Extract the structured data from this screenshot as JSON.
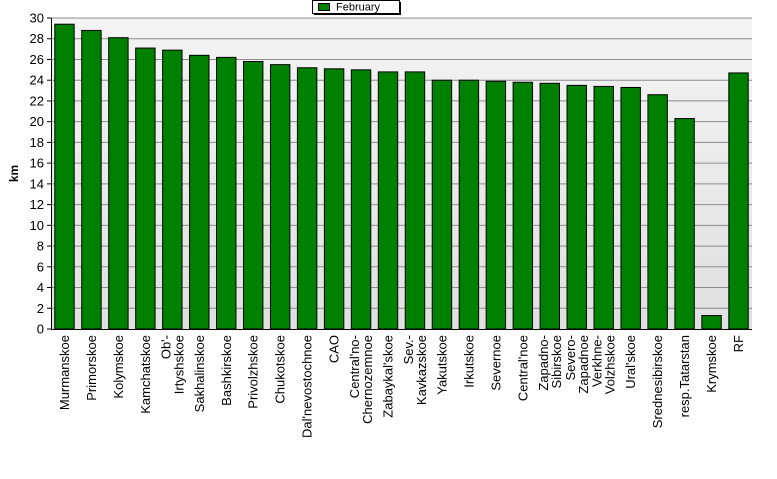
{
  "chart_data": {
    "type": "bar",
    "title": "",
    "xlabel": "",
    "ylabel": "km",
    "ylim": [
      0,
      30
    ],
    "yticks": [
      "0",
      "2",
      "4",
      "6",
      "8",
      "10",
      "12",
      "14",
      "16",
      "18",
      "20",
      "22",
      "24",
      "26",
      "28",
      "30"
    ],
    "grid": true,
    "legend_position": "top-center",
    "categories": [
      "Murmanskoe",
      "Primorskoe",
      "Kolymskoe",
      "Kamchatskoe",
      "Ob'-Irtyshskoe",
      "Sakhalinskoe",
      "Bashkirskoe",
      "Privolzhskoe",
      "Chukotskoe",
      "Dal'nevostochnoe",
      "CAO",
      "Central'no-Chernozemnoe",
      "Zabaykal'skoe",
      "Sev.-Kavkazskoe",
      "Yakutskoe",
      "Irkutskoe",
      "Severnoe",
      "Central'noe",
      "Zapadno-Sibirskoe",
      "Severo-Zapadnoe",
      "Verkhne-Volzhskoe",
      "Ural'skoe",
      "Srednesibirskoe",
      "resp.Tatarstan",
      "Krymskoe",
      "RF"
    ],
    "category_label_lines": [
      [
        "Murmanskoe"
      ],
      [
        "Primorskoe"
      ],
      [
        "Kolymskoe"
      ],
      [
        "Kamchatskoe"
      ],
      [
        "Ob'-",
        "Irtyshskoe"
      ],
      [
        "Sakhalinskoe"
      ],
      [
        "Bashkirskoe"
      ],
      [
        "Privolzhskoe"
      ],
      [
        "Chukotskoe"
      ],
      [
        "Dal'nevostochnoe"
      ],
      [
        "CAO"
      ],
      [
        "Central'no-",
        "Chernozemnoe"
      ],
      [
        "Zabaykal'skoe"
      ],
      [
        "Sev.-",
        "Kavkazskoe"
      ],
      [
        "Yakutskoe"
      ],
      [
        "Irkutskoe"
      ],
      [
        "Severnoe"
      ],
      [
        "Central'noe"
      ],
      [
        "Zapadno-",
        "Sibirskoe"
      ],
      [
        "Severo-",
        "Zapadnoe"
      ],
      [
        "Verkhne-",
        "Volzhskoe"
      ],
      [
        "Ural'skoe"
      ],
      [
        "Srednesibirskoe"
      ],
      [
        "resp.Tatarstan"
      ],
      [
        "Krymskoe"
      ],
      [
        "RF"
      ]
    ],
    "series": [
      {
        "name": "February",
        "color": "#008000",
        "values": [
          29.4,
          28.8,
          28.1,
          27.1,
          26.9,
          26.4,
          26.2,
          25.8,
          25.5,
          25.2,
          25.1,
          25.0,
          24.8,
          24.8,
          24.0,
          24.0,
          23.9,
          23.8,
          23.7,
          23.5,
          23.4,
          23.3,
          22.6,
          20.3,
          1.3,
          24.7
        ]
      }
    ],
    "colors": {
      "plot_background_top": "#f4f4f4",
      "plot_background_bottom": "#e0e0e0",
      "gridline": "#8c8c8c",
      "bar_edge": "#000000"
    }
  }
}
